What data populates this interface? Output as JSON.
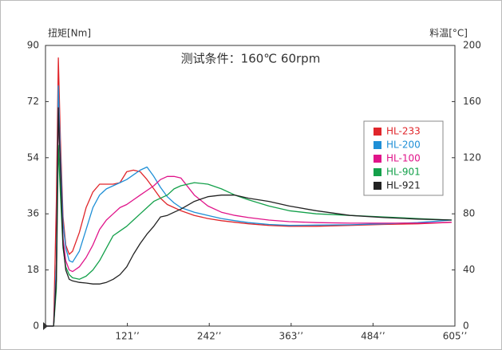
{
  "chart_data": {
    "type": "line",
    "title": "测试条件：160℃ 60rpm",
    "y_label": "扭矩[Nm]",
    "y2_label": "料温[°C]",
    "x": [
      0,
      12,
      16,
      19,
      22,
      26,
      30,
      35,
      40,
      50,
      60,
      70,
      80,
      90,
      100,
      110,
      120,
      130,
      140,
      150,
      160,
      170,
      180,
      190,
      200,
      220,
      240,
      260,
      280,
      300,
      330,
      360,
      400,
      450,
      500,
      550,
      600
    ],
    "series": [
      {
        "name": "HL-233",
        "color": "#e0262b",
        "values": [
          0,
          0,
          40,
          86,
          60,
          35,
          26,
          23,
          24,
          30,
          38,
          43,
          45.5,
          45.5,
          45.5,
          46,
          49.5,
          50,
          49.5,
          47,
          44,
          41,
          39,
          38,
          37,
          35.5,
          34.5,
          33.8,
          33.3,
          32.8,
          32.3,
          32,
          32,
          32.3,
          32.6,
          32.8,
          33.3
        ]
      },
      {
        "name": "HL-200",
        "color": "#1f8fd6",
        "values": [
          0,
          0,
          20,
          77,
          55,
          33,
          25,
          21,
          20.5,
          24,
          31,
          38,
          42,
          44,
          45,
          46,
          47,
          48.5,
          50,
          51,
          48,
          44.5,
          41.5,
          39.5,
          38,
          36.5,
          35.5,
          34.5,
          33.8,
          33.2,
          32.6,
          32.3,
          32.4,
          32.5,
          32.8,
          33.2,
          34
        ]
      },
      {
        "name": "HL-100",
        "color": "#e0148a",
        "values": [
          0,
          0,
          15,
          70,
          50,
          28,
          21,
          18,
          17.5,
          19,
          22,
          26,
          31,
          34,
          36,
          38,
          39,
          40.5,
          42,
          43.5,
          45,
          47,
          48,
          48,
          47.5,
          42,
          38.5,
          36.5,
          35.5,
          34.8,
          34,
          33.5,
          33.2,
          33,
          33,
          33,
          33.3
        ]
      },
      {
        "name": "HL-901",
        "color": "#13a04a",
        "values": [
          0,
          0,
          12,
          58,
          42,
          25,
          19,
          16.5,
          15.5,
          15,
          16,
          18,
          21,
          25,
          29,
          30.5,
          32,
          34,
          36,
          38,
          40,
          41,
          42,
          44,
          45,
          46,
          45.5,
          44,
          42,
          40.5,
          38.5,
          37,
          36,
          35.5,
          35,
          34.5,
          34
        ]
      },
      {
        "name": "HL-921",
        "color": "#222222",
        "values": [
          0,
          0,
          15,
          70,
          50,
          26,
          18,
          15,
          14.5,
          14,
          13.8,
          13.5,
          13.5,
          14,
          15,
          16.5,
          19,
          23,
          26.5,
          29.5,
          32,
          35,
          35.5,
          36.5,
          37.5,
          40,
          41.5,
          42,
          42,
          41,
          40,
          38.5,
          37,
          35.5,
          34.8,
          34.3,
          34
        ]
      }
    ],
    "xlim": [
      0,
      605
    ],
    "xticks": [
      {
        "value": 121,
        "label": "121’’"
      },
      {
        "value": 242,
        "label": "242’’"
      },
      {
        "value": 363,
        "label": "363’’"
      },
      {
        "value": 484,
        "label": "484’’"
      },
      {
        "value": 605,
        "label": "605’’"
      }
    ],
    "ylim": [
      0,
      90
    ],
    "yticks": [
      0,
      18,
      36,
      54,
      72,
      90
    ],
    "y2lim": [
      0,
      200
    ],
    "y2ticks": [
      0,
      40,
      80,
      120,
      160,
      200
    ],
    "legend": "right"
  }
}
